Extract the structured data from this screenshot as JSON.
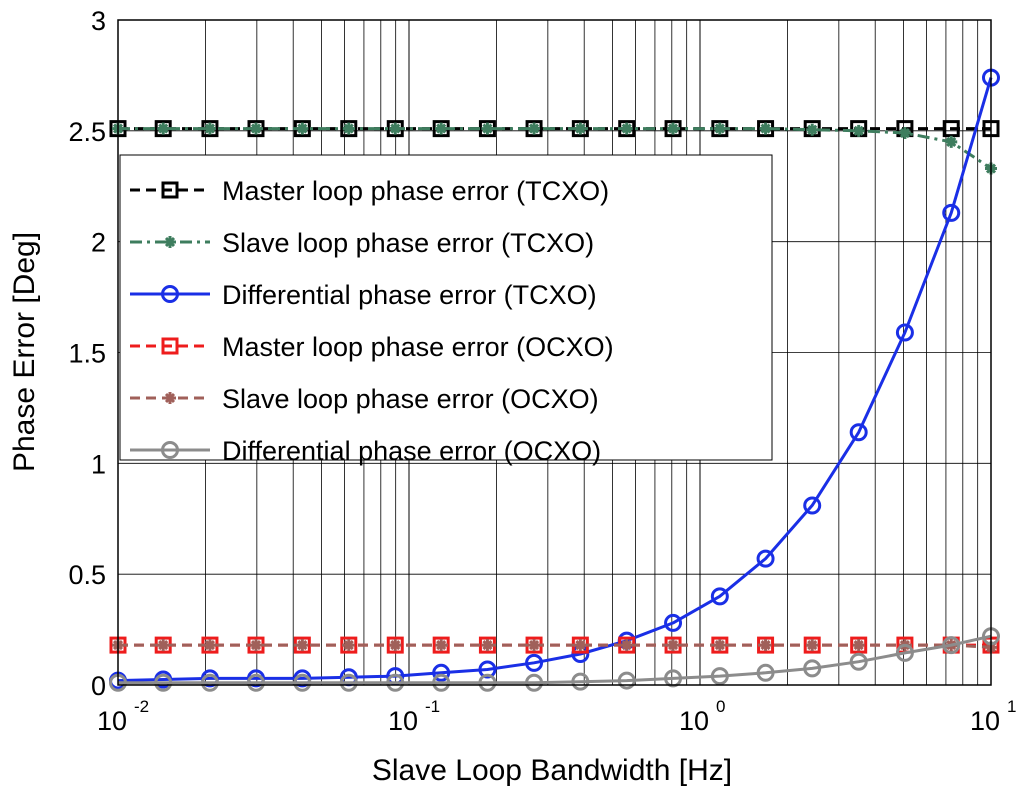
{
  "chart_data": {
    "type": "line",
    "title": "",
    "xlabel": "Slave Loop Bandwidth [Hz]",
    "ylabel": "Phase Error [Deg]",
    "xscale": "log",
    "xlim": [
      0.01,
      10
    ],
    "ylim": [
      0,
      3
    ],
    "grid": true,
    "legend_position": "upper-left",
    "x_ticks": [
      {
        "base": "10",
        "exp": "-2",
        "value": 0.01
      },
      {
        "base": "10",
        "exp": "-1",
        "value": 0.1
      },
      {
        "base": "10",
        "exp": "0",
        "value": 1
      },
      {
        "base": "10",
        "exp": "1",
        "value": 10
      }
    ],
    "y_ticks": [
      {
        "label": "0",
        "value": 0
      },
      {
        "label": "0.5",
        "value": 0.5
      },
      {
        "label": "1",
        "value": 1
      },
      {
        "label": "1.5",
        "value": 1.5
      },
      {
        "label": "2",
        "value": 2
      },
      {
        "label": "2.5",
        "value": 2.5
      },
      {
        "label": "3",
        "value": 3
      }
    ],
    "x": [
      0.01,
      0.0143,
      0.0207,
      0.0298,
      0.043,
      0.0621,
      0.0897,
      0.129,
      0.186,
      0.269,
      0.388,
      0.56,
      0.808,
      1.17,
      1.68,
      2.43,
      3.51,
      5.06,
      7.3,
      10
    ],
    "series": [
      {
        "name": "Master loop phase error (TCXO)",
        "color": "#000000",
        "dash": "10,6",
        "marker": "square",
        "values": [
          2.51,
          2.51,
          2.51,
          2.51,
          2.51,
          2.51,
          2.51,
          2.51,
          2.51,
          2.51,
          2.51,
          2.51,
          2.51,
          2.51,
          2.51,
          2.51,
          2.51,
          2.51,
          2.51,
          2.51
        ]
      },
      {
        "name": "Slave loop phase error (TCXO)",
        "color": "#3e7d5e",
        "dash": "12,5,3,5",
        "marker": "star",
        "values": [
          2.51,
          2.51,
          2.51,
          2.51,
          2.51,
          2.51,
          2.51,
          2.51,
          2.51,
          2.51,
          2.51,
          2.51,
          2.51,
          2.51,
          2.51,
          2.505,
          2.5,
          2.49,
          2.45,
          2.33
        ]
      },
      {
        "name": "Differential phase error (TCXO)",
        "color": "#1a2fe6",
        "dash": "",
        "marker": "circle",
        "values": [
          0.02,
          0.025,
          0.03,
          0.03,
          0.03,
          0.035,
          0.04,
          0.055,
          0.07,
          0.1,
          0.14,
          0.2,
          0.28,
          0.4,
          0.57,
          0.81,
          1.14,
          1.59,
          2.13,
          2.74
        ]
      },
      {
        "name": "Master loop phase error (OCXO)",
        "color": "#ee1c1c",
        "dash": "10,6",
        "marker": "square",
        "values": [
          0.18,
          0.18,
          0.18,
          0.18,
          0.18,
          0.18,
          0.18,
          0.18,
          0.18,
          0.18,
          0.18,
          0.18,
          0.18,
          0.18,
          0.18,
          0.18,
          0.18,
          0.18,
          0.18,
          0.18
        ]
      },
      {
        "name": "Slave loop phase error (OCXO)",
        "color": "#a0605a",
        "dash": "10,6",
        "marker": "star",
        "values": [
          0.18,
          0.18,
          0.18,
          0.18,
          0.18,
          0.18,
          0.18,
          0.18,
          0.18,
          0.18,
          0.18,
          0.18,
          0.18,
          0.18,
          0.18,
          0.18,
          0.18,
          0.18,
          0.18,
          0.17
        ]
      },
      {
        "name": "Differential phase error (OCXO)",
        "color": "#8c8c8c",
        "dash": "",
        "marker": "circle",
        "values": [
          0.01,
          0.01,
          0.01,
          0.01,
          0.01,
          0.01,
          0.01,
          0.01,
          0.01,
          0.01,
          0.015,
          0.02,
          0.03,
          0.04,
          0.055,
          0.075,
          0.105,
          0.145,
          0.18,
          0.22
        ]
      }
    ]
  }
}
